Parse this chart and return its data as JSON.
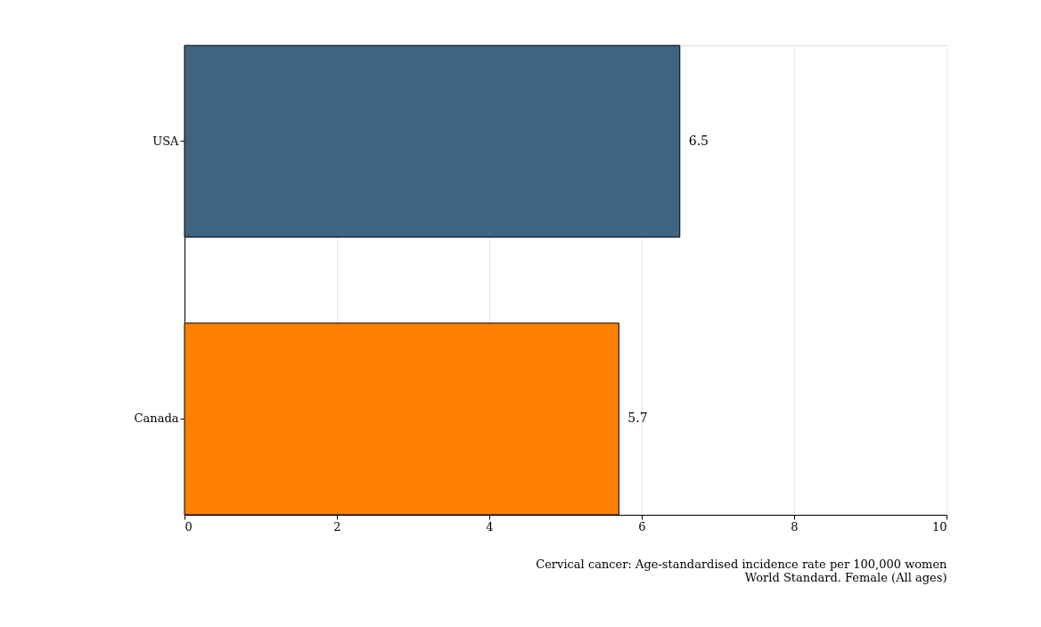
{
  "chart_data": {
    "type": "bar",
    "orientation": "horizontal",
    "categories": [
      "USA",
      "Canada"
    ],
    "values": [
      6.5,
      5.7
    ],
    "colors": [
      "#3f6480",
      "#ff7f00"
    ],
    "xlim": [
      0,
      10
    ],
    "xticks": [
      0,
      2,
      4,
      6,
      8,
      10
    ],
    "grid": "x",
    "data_labels": true,
    "annotations": [
      "Cervical cancer: Age-standardised incidence rate per 100,000 women",
      "World Standard. Female (All ages)"
    ]
  }
}
